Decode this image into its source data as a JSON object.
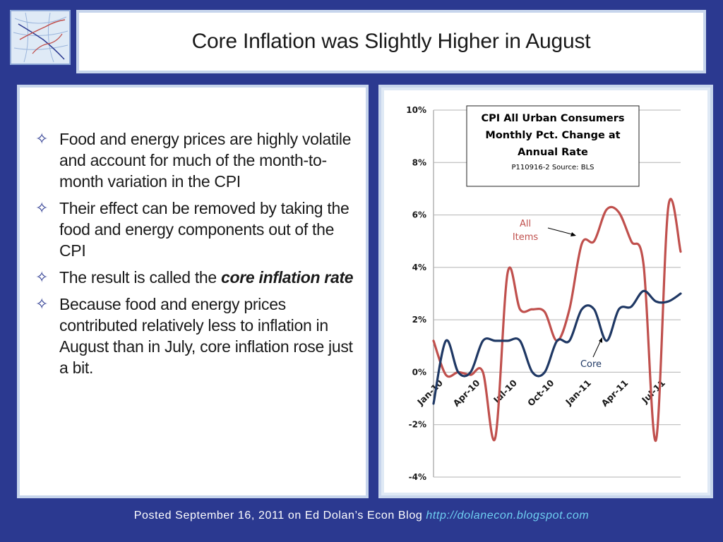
{
  "slide": {
    "title": "Core Inflation was Slightly Higher in August",
    "bullets": [
      {
        "text": "Food and energy prices are highly volatile and account for much of the month-to-month variation in the CPI"
      },
      {
        "text": "Their effect can be removed by taking the food and energy components out of the CPI"
      },
      {
        "text_before": "The result is called the ",
        "emphasis": "core inflation rate",
        "text_after": ""
      },
      {
        "text": "Because food and energy prices contributed relatively less to inflation in August than in July, core inflation rose just a bit."
      }
    ],
    "bullet_icon": "four-point-star-icon"
  },
  "footer": {
    "text": "Posted September 16, 2011 on Ed Dolan’s Econ Blog",
    "url": "http://dolanecon.blogspot.com"
  },
  "colors": {
    "background": "#2b3990",
    "all_items_line": "#c0504d",
    "core_line": "#1f3864",
    "url_text": "#6fd0f2"
  },
  "chart_data": {
    "type": "line",
    "title_lines": [
      "CPI All Urban Consumers",
      "Monthly Pct. Change at",
      "Annual Rate"
    ],
    "source_note": "P110916-2 Source: BLS",
    "x_tick_labels": [
      {
        "label": "Jan-10",
        "month_index": 0
      },
      {
        "label": "Apr-10",
        "month_index": 3
      },
      {
        "label": "Jul-10",
        "month_index": 6
      },
      {
        "label": "Oct-10",
        "month_index": 9
      },
      {
        "label": "Jan-11",
        "month_index": 12
      },
      {
        "label": "Apr-11",
        "month_index": 15
      },
      {
        "label": "Jul-11",
        "month_index": 18
      }
    ],
    "ylim": [
      -4,
      10
    ],
    "y_ticks": [
      {
        "value": 10,
        "label": "10%"
      },
      {
        "value": 8,
        "label": "8%"
      },
      {
        "value": 6,
        "label": "6%"
      },
      {
        "value": 4,
        "label": "4%"
      },
      {
        "value": 2,
        "label": "2%"
      },
      {
        "value": 0,
        "label": "0%"
      },
      {
        "value": -2,
        "label": "-2%"
      },
      {
        "value": -4,
        "label": "-4%"
      }
    ],
    "grid": true,
    "series": [
      {
        "name": "All Items",
        "label_lines": [
          "All",
          "Items"
        ],
        "color": "#c0504d",
        "values": [
          1.2,
          -0.1,
          0.0,
          -0.1,
          0.0,
          -2.5,
          3.8,
          2.4,
          2.4,
          2.3,
          1.2,
          2.4,
          4.9,
          5.0,
          6.2,
          6.1,
          5.0,
          4.1,
          -2.6,
          6.3,
          4.6
        ]
      },
      {
        "name": "Core",
        "label_lines": [
          "Core"
        ],
        "color": "#1f3864",
        "values": [
          -1.2,
          1.2,
          0.0,
          0.0,
          1.2,
          1.2,
          1.2,
          1.2,
          0.0,
          0.0,
          1.2,
          1.2,
          2.4,
          2.4,
          1.2,
          2.4,
          2.5,
          3.1,
          2.7,
          2.7,
          3.0
        ]
      }
    ]
  }
}
